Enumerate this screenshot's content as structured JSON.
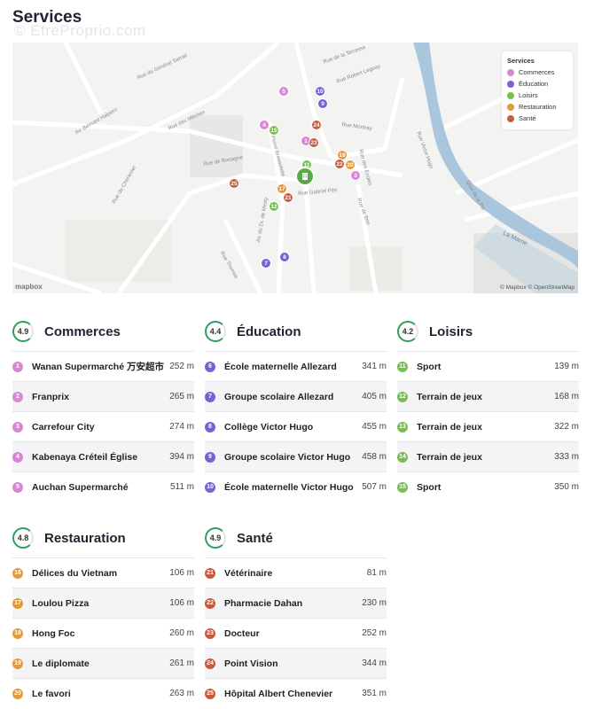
{
  "page": {
    "title": "Services",
    "watermark": "© EtreProprio.com"
  },
  "colors": {
    "commerces": "#d986d6",
    "education": "#7a5fd6",
    "loisirs": "#78bf52",
    "restauration": "#e29a3b",
    "sante": "#c75b3f"
  },
  "map": {
    "legend_title": "Services",
    "legend": [
      "Commerces",
      "Éducation",
      "Loisirs",
      "Restauration",
      "Santé"
    ],
    "logo": "mapbox",
    "copyright": "© Mapbox © OpenStreetMap",
    "center_icon": "building-icon",
    "streets": [
      "Rue du Général Sarrail",
      "Rue de la Terrasse",
      "Rue Robert Legeay",
      "Rue des Mèches",
      "Av. Bernard Halpern",
      "Rue de Chenevier",
      "Rue de Bretagne",
      "Rue Montray",
      "Rue des Écoles",
      "Rue Gabriel Péri",
      "Rue de Brie",
      "Av. du Dr. de Mesly",
      "Av. Pierre Brossolette",
      "Quai de la Pie",
      "La Marne",
      "Rue Victor Hugo",
      "Rue Thomas"
    ],
    "pins": [
      {
        "n": "5",
        "cat": "commerces"
      },
      {
        "n": "10",
        "cat": "education"
      },
      {
        "n": "9",
        "cat": "education"
      },
      {
        "n": "4",
        "cat": "commerces"
      },
      {
        "n": "15",
        "cat": "loisirs"
      },
      {
        "n": "24",
        "cat": "sante"
      },
      {
        "n": "1",
        "cat": "commerces"
      },
      {
        "n": "23",
        "cat": "sante"
      },
      {
        "n": "11",
        "cat": "loisirs"
      },
      {
        "n": "18",
        "cat": "restauration"
      },
      {
        "n": "22",
        "cat": "sante"
      },
      {
        "n": "20",
        "cat": "restauration"
      },
      {
        "n": "3",
        "cat": "commerces"
      },
      {
        "n": "25",
        "cat": "sante"
      },
      {
        "n": "17",
        "cat": "restauration"
      },
      {
        "n": "21",
        "cat": "sante"
      },
      {
        "n": "12",
        "cat": "loisirs"
      },
      {
        "n": "7",
        "cat": "education"
      },
      {
        "n": "8",
        "cat": "education"
      }
    ]
  },
  "categories": [
    {
      "key": "commerces",
      "name": "Commerces",
      "score": "4.9",
      "items": [
        {
          "n": "1",
          "name": "Wanan Supermarché 万安超市",
          "dist": "252 m"
        },
        {
          "n": "2",
          "name": "Franprix",
          "dist": "265 m"
        },
        {
          "n": "3",
          "name": "Carrefour City",
          "dist": "274 m"
        },
        {
          "n": "4",
          "name": "Kabenaya Créteil Église",
          "dist": "394 m"
        },
        {
          "n": "5",
          "name": "Auchan Supermarché",
          "dist": "511 m"
        }
      ]
    },
    {
      "key": "education",
      "name": "Éducation",
      "score": "4.4",
      "items": [
        {
          "n": "6",
          "name": "École maternelle Allezard",
          "dist": "341 m"
        },
        {
          "n": "7",
          "name": "Groupe scolaire Allezard",
          "dist": "405 m"
        },
        {
          "n": "8",
          "name": "Collège Victor Hugo",
          "dist": "455 m"
        },
        {
          "n": "9",
          "name": "Groupe scolaire Victor Hugo",
          "dist": "458 m"
        },
        {
          "n": "10",
          "name": "École maternelle Victor Hugo",
          "dist": "507 m"
        }
      ]
    },
    {
      "key": "loisirs",
      "name": "Loisirs",
      "score": "4.2",
      "items": [
        {
          "n": "11",
          "name": "Sport",
          "dist": "139 m"
        },
        {
          "n": "12",
          "name": "Terrain de jeux",
          "dist": "168 m"
        },
        {
          "n": "13",
          "name": "Terrain de jeux",
          "dist": "322 m"
        },
        {
          "n": "14",
          "name": "Terrain de jeux",
          "dist": "333 m"
        },
        {
          "n": "15",
          "name": "Sport",
          "dist": "350 m"
        }
      ]
    },
    {
      "key": "restauration",
      "name": "Restauration",
      "score": "4.8",
      "items": [
        {
          "n": "16",
          "name": "Délices du Vietnam",
          "dist": "106 m"
        },
        {
          "n": "17",
          "name": "Loulou Pizza",
          "dist": "106 m"
        },
        {
          "n": "18",
          "name": "Hong Foc",
          "dist": "260 m"
        },
        {
          "n": "19",
          "name": "Le diplomate",
          "dist": "261 m"
        },
        {
          "n": "20",
          "name": "Le favori",
          "dist": "263 m"
        }
      ]
    },
    {
      "key": "sante",
      "name": "Santé",
      "score": "4.9",
      "items": [
        {
          "n": "21",
          "name": "Vétérinaire",
          "dist": "81 m"
        },
        {
          "n": "22",
          "name": "Pharmacie Dahan",
          "dist": "230 m"
        },
        {
          "n": "23",
          "name": "Docteur",
          "dist": "252 m"
        },
        {
          "n": "24",
          "name": "Point Vision",
          "dist": "344 m"
        },
        {
          "n": "25",
          "name": "Hôpital Albert Chenevier",
          "dist": "351 m"
        }
      ]
    }
  ]
}
